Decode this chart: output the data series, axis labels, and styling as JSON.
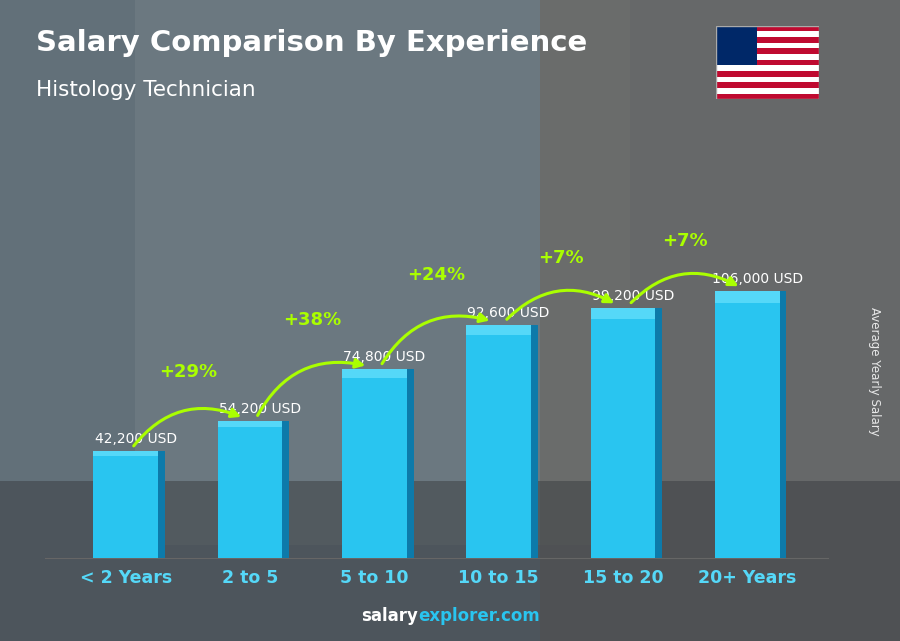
{
  "title_line1": "Salary Comparison By Experience",
  "title_line2": "Histology Technician",
  "categories": [
    "< 2 Years",
    "2 to 5",
    "5 to 10",
    "10 to 15",
    "15 to 20",
    "20+ Years"
  ],
  "values": [
    42200,
    54200,
    74800,
    92600,
    99200,
    106000
  ],
  "labels": [
    "42,200 USD",
    "54,200 USD",
    "74,800 USD",
    "92,600 USD",
    "99,200 USD",
    "106,000 USD"
  ],
  "pct_changes": [
    "+29%",
    "+38%",
    "+24%",
    "+7%",
    "+7%"
  ],
  "bar_color_face": "#29c5f0",
  "bar_color_right": "#0d7aaa",
  "bar_color_top": "#55d8f8",
  "bg_color": "#7a8a90",
  "text_color_white": "#ffffff",
  "text_color_green": "#aaff00",
  "ylabel": "Average Yearly Salary",
  "footer_bold": "salary",
  "footer_light": "explorer.com",
  "ylim": [
    0,
    135000
  ],
  "flag_colors_red": "#bf0a30",
  "flag_colors_blue": "#002868"
}
